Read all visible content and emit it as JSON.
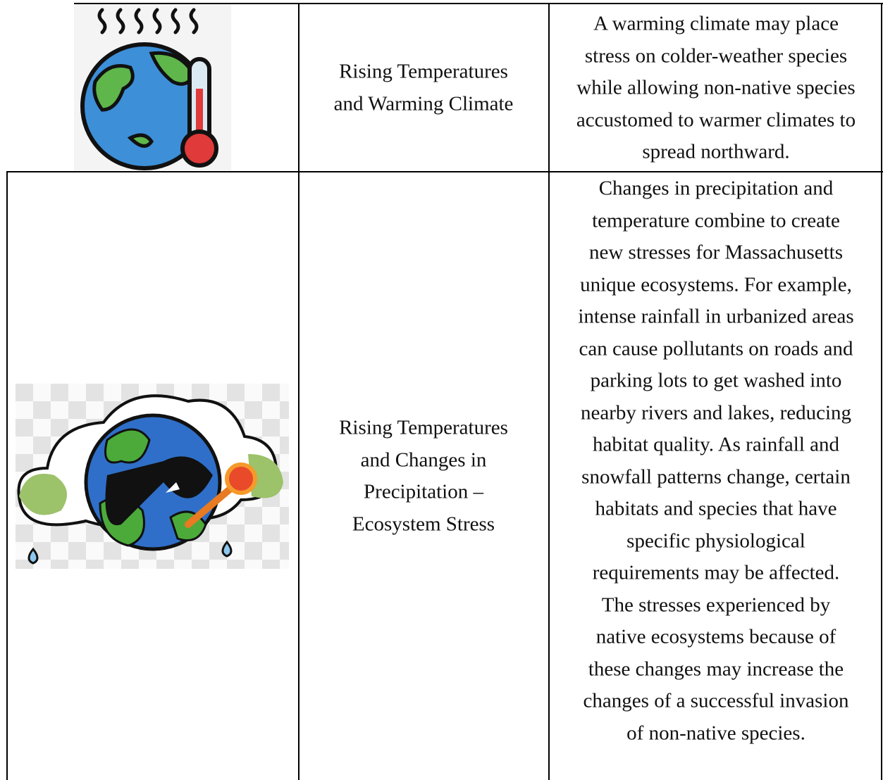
{
  "table": {
    "rows": [
      {
        "hazard": [
          "Rising Temperatures",
          "and Warming Climate"
        ],
        "description": [
          "A warming climate may place",
          "stress on colder-weather species",
          "while allowing non-native species",
          "accustomed to warmer climates to",
          "spread northward."
        ]
      },
      {
        "hazard": [
          "Rising Temperatures",
          "and Changes in",
          "Precipitation –",
          "Ecosystem Stress"
        ],
        "description": [
          "Changes in precipitation and",
          "temperature combine to create",
          "new stresses for Massachusetts",
          "unique ecosystems. For example,",
          "intense rainfall in urbanized areas",
          "can cause pollutants on roads and",
          "parking lots to get washed into",
          "nearby rivers and lakes, reducing",
          "habitat quality. As rainfall and",
          "snowfall patterns change, certain",
          "habitats and species that have",
          "specific physiological",
          "requirements may be affected.",
          "The stresses experienced by",
          "native ecosystems because of",
          "these changes may increase the",
          "changes of a successful invasion",
          "of non-native species."
        ]
      }
    ]
  }
}
